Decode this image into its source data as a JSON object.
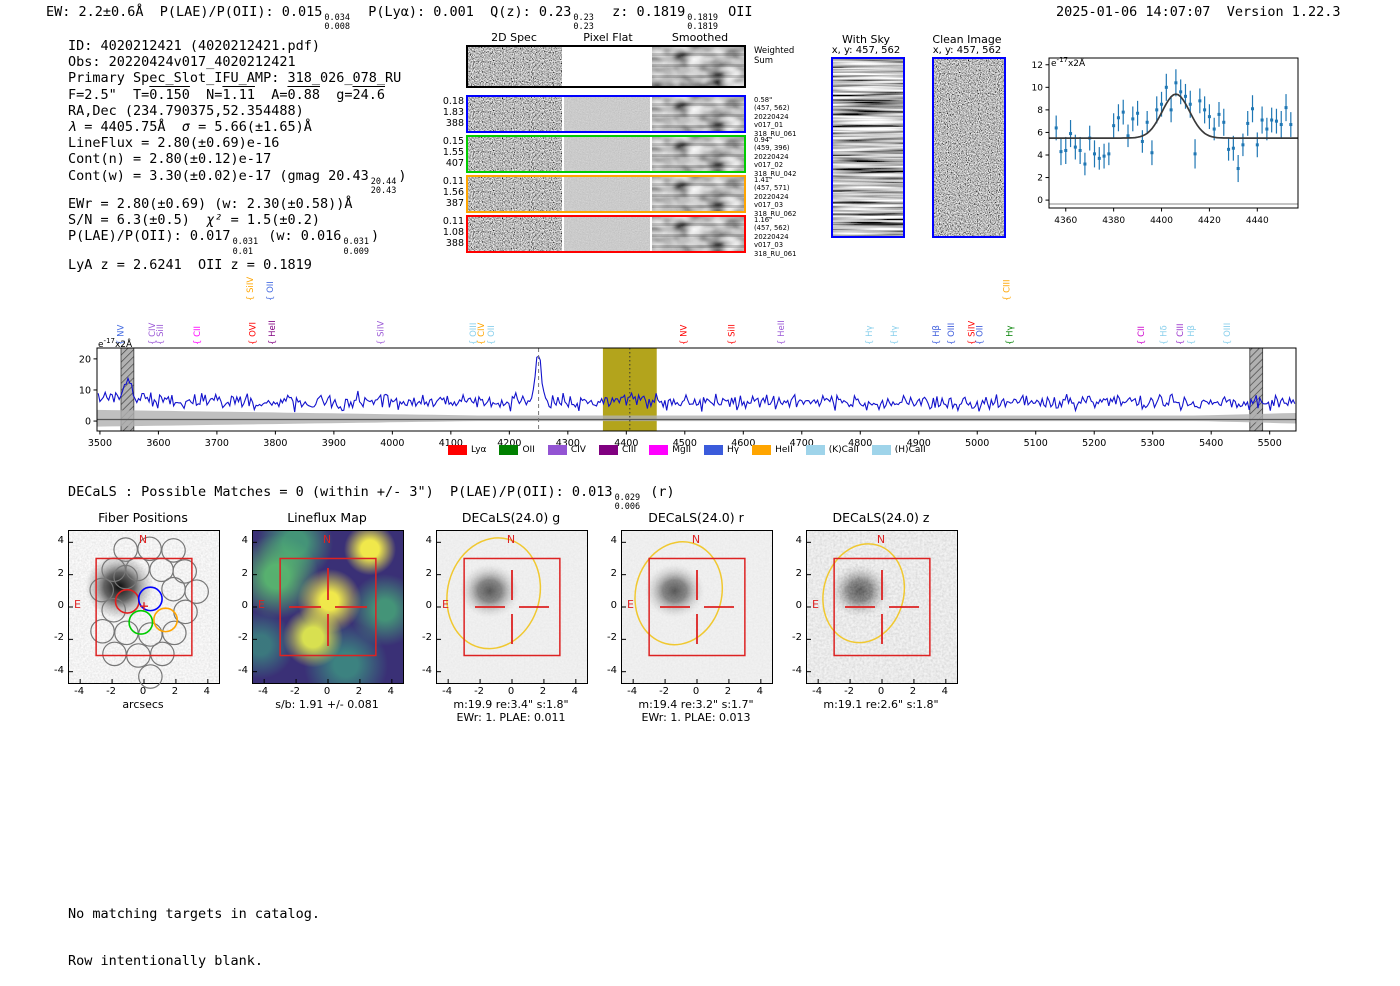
{
  "header": {
    "segs": [
      {
        "t": "EW: 2.2±0.6Å  P(LAE)/P(OII): 0.015"
      },
      {
        "f": [
          "0.034",
          "0.008"
        ]
      },
      {
        "t": "  P(Lyα): 0.001  Q(z): 0.23"
      },
      {
        "f": [
          "0.23",
          "0.23"
        ]
      },
      {
        "t": "  z: 0.1819"
      },
      {
        "f": [
          "0.1819",
          "0.1819"
        ]
      },
      {
        "t": " OII"
      }
    ],
    "timestamp": "2025-01-06 14:07:07",
    "version": "Version 1.22.3"
  },
  "info_lines": [
    [
      {
        "t": "ID: 4020212421 (4020212421.pdf)"
      }
    ],
    [
      {
        "t": "Obs: 20220424v017_4020212421"
      }
    ],
    [
      {
        "t": "Primary Spec_Slot_IFU_AMP: 318_026_078_RU"
      }
    ],
    [
      {
        "t": "F=2.5\"  T="
      },
      {
        "t": "0.150",
        "ol": true
      },
      {
        "t": "  N="
      },
      {
        "t": "1.11",
        "ol": true
      },
      {
        "t": "  A="
      },
      {
        "t": "0.88",
        "ol": true
      },
      {
        "t": "  g="
      },
      {
        "t": "24.6",
        "ol": true
      }
    ],
    [
      {
        "t": "RA,Dec (234.790375,52.354488)"
      }
    ],
    [
      {
        "t": "λ",
        "it": true
      },
      {
        "t": " = 4405.75Å  "
      },
      {
        "t": "σ",
        "it": true
      },
      {
        "t": " = 5.66(±1.65)Å"
      }
    ],
    [
      {
        "t": "LineFlux = 2.80(±0.69)e-16"
      }
    ],
    [
      {
        "t": "Cont(n) = 2.80(±0.12)e-17"
      }
    ],
    [
      {
        "t": "Cont(w) = 3.30(±0.02)e-17 (gmag 20.43"
      },
      {
        "f": [
          "20.44",
          "20.43"
        ]
      },
      {
        "t": ")"
      }
    ],
    [
      {
        "t": "EWr = 2.80(±0.69) (w: 2.30(±0.58))Å"
      }
    ],
    [
      {
        "t": "S/N = 6.3(±0.5)  "
      },
      {
        "t": "χ²",
        "it": true
      },
      {
        "t": " = 1.5(±0.2)"
      }
    ],
    [
      {
        "t": "P(LAE)/P(OII): 0.017"
      },
      {
        "f": [
          "0.031",
          "0.01"
        ]
      },
      {
        "t": " (w: 0.016"
      },
      {
        "f": [
          "0.031",
          "0.009"
        ]
      },
      {
        "t": ")"
      }
    ],
    [
      {
        "t": "LyA z = 2.6241  OII z = 0.1819"
      }
    ]
  ],
  "spec2d": {
    "col_titles": [
      "2D Spec",
      "Pixel Flat",
      "Smoothed"
    ],
    "rows": [
      {
        "border": "#000000",
        "left": [],
        "right": [
          "Weighted",
          "Sum"
        ],
        "big": true
      },
      {
        "border": "#0000ff",
        "left": [
          "0.18",
          "1.83",
          "388"
        ],
        "right": [
          "0.58\"",
          "(457, 562)",
          "20220424",
          "v017_01",
          "318_RU_061"
        ]
      },
      {
        "border": "#00cc00",
        "left": [
          "0.15",
          "1.55",
          "407"
        ],
        "right": [
          "0.94\"",
          "(459, 396)",
          "20220424",
          "v017_02",
          "318_RU_042"
        ]
      },
      {
        "border": "#ffa500",
        "left": [
          "0.11",
          "1.56",
          "387"
        ],
        "right": [
          "1.41\"",
          "(457, 571)",
          "20220424",
          "v017_03",
          "318_RU_062"
        ]
      },
      {
        "border": "#ff0000",
        "left": [
          "0.11",
          "1.08",
          "388"
        ],
        "right": [
          "1.16\"",
          "(457, 562)",
          "20220424",
          "v017_03",
          "318_RU_061"
        ]
      }
    ]
  },
  "sky": {
    "with_sky_title": "With Sky",
    "with_sky_sub": "x, y: 457, 562",
    "clean_title": "Clean Image",
    "clean_sub": "x, y: 457, 562"
  },
  "chart_data": [
    {
      "type": "scatter",
      "title": "Line fit zoom",
      "unit": {
        "base": "e",
        "exp": "-17",
        "suffix": "x2Å"
      },
      "xlim": [
        4353,
        4457
      ],
      "ylim": [
        -0.7,
        12.6
      ],
      "xticks": [
        4360,
        4380,
        4400,
        4420,
        4440
      ],
      "yticks": [
        0,
        2,
        4,
        6,
        8,
        10,
        12
      ],
      "point_color": "#1f77b4",
      "fit_color": "#3a3a3a",
      "fit": {
        "baseline": 5.5,
        "amplitude": 3.9,
        "center": 4406,
        "sigma": 5.7
      },
      "points": [
        [
          4356,
          6.4,
          1.1
        ],
        [
          4358,
          4.3,
          1.2
        ],
        [
          4360,
          4.4,
          1.2
        ],
        [
          4362,
          5.9,
          1.2
        ],
        [
          4364,
          4.7,
          1.1
        ],
        [
          4366,
          4.4,
          1.2
        ],
        [
          4368,
          3.2,
          1.0
        ],
        [
          4370,
          5.5,
          1.1
        ],
        [
          4372,
          4.1,
          1.2
        ],
        [
          4374,
          3.7,
          1.0
        ],
        [
          4376,
          3.9,
          1.1
        ],
        [
          4378,
          4.1,
          1.0
        ],
        [
          4380,
          6.6,
          1.1
        ],
        [
          4382,
          7.3,
          1.2
        ],
        [
          4384,
          7.8,
          1.1
        ],
        [
          4386,
          5.7,
          1.0
        ],
        [
          4388,
          7.2,
          1.1
        ],
        [
          4390,
          7.7,
          1.1
        ],
        [
          4392,
          5.2,
          1.0
        ],
        [
          4394,
          6.9,
          1.0
        ],
        [
          4396,
          4.2,
          1.1
        ],
        [
          4398,
          8.0,
          1.2
        ],
        [
          4400,
          8.5,
          1.1
        ],
        [
          4402,
          10.0,
          1.2
        ],
        [
          4404,
          8.0,
          1.1
        ],
        [
          4406,
          10.4,
          1.2
        ],
        [
          4408,
          9.6,
          1.1
        ],
        [
          4410,
          9.2,
          1.1
        ],
        [
          4412,
          8.5,
          1.2
        ],
        [
          4414,
          4.1,
          1.3
        ],
        [
          4416,
          8.8,
          1.1
        ],
        [
          4418,
          8.0,
          1.2
        ],
        [
          4420,
          7.4,
          1.1
        ],
        [
          4422,
          6.3,
          1.0
        ],
        [
          4424,
          7.6,
          1.1
        ],
        [
          4426,
          6.9,
          1.2
        ],
        [
          4428,
          4.5,
          1.0
        ],
        [
          4430,
          4.6,
          1.1
        ],
        [
          4432,
          2.8,
          1.2
        ],
        [
          4434,
          4.9,
          1.0
        ],
        [
          4436,
          6.8,
          1.1
        ],
        [
          4438,
          8.1,
          1.2
        ],
        [
          4440,
          4.9,
          1.1
        ],
        [
          4442,
          7.1,
          1.2
        ],
        [
          4444,
          6.3,
          1.0
        ],
        [
          4446,
          7.1,
          1.1
        ],
        [
          4448,
          7.0,
          1.1
        ],
        [
          4450,
          6.7,
          1.2
        ],
        [
          4452,
          8.2,
          1.2
        ],
        [
          4454,
          6.7,
          1.1
        ]
      ]
    },
    {
      "type": "line",
      "title": "Full spectrum",
      "unit": {
        "base": "e",
        "exp": "-17",
        "suffix": "x2Å"
      },
      "xlim": [
        3495,
        5545
      ],
      "ylim": [
        -3.2,
        23.5
      ],
      "xticks": [
        3500,
        3600,
        3700,
        3800,
        3900,
        4000,
        4100,
        4200,
        4300,
        4400,
        4500,
        4600,
        4700,
        4800,
        4900,
        5000,
        5100,
        5200,
        5300,
        5400,
        5500
      ],
      "yticks": [
        0,
        10,
        20
      ],
      "line_color": "#1212cc",
      "baseline": 6.2,
      "noise_sigma": 1.5,
      "spike": {
        "x": 4250,
        "peak": 22
      },
      "selected_line_x": 4406,
      "highlight_band": {
        "x0": 4360,
        "x1": 4452,
        "color": "#b3a41c"
      },
      "hatch_bands": [
        [
          3536,
          3558
        ],
        [
          5466,
          5488
        ]
      ],
      "dashed_line_x": 4250,
      "emission_labels": [
        {
          "name": "NV",
          "wave": 3540,
          "color": "#4169e1",
          "tier": 0
        },
        {
          "name": "CIV",
          "wave": 3594,
          "color": "#9b59d6",
          "tier": 0
        },
        {
          "name": "SiII",
          "wave": 3608,
          "color": "#9b59d6",
          "tier": 0
        },
        {
          "name": "CII",
          "wave": 3671,
          "color": "#ff00ff",
          "tier": 0
        },
        {
          "name": "SiIV",
          "wave": 3762,
          "color": "#ffa500",
          "tier": 1
        },
        {
          "name": "OII",
          "wave": 3796,
          "color": "#4169e1",
          "tier": 1
        },
        {
          "name": "OVI",
          "wave": 3766,
          "color": "#ff0000",
          "tier": 0
        },
        {
          "name": "HeII",
          "wave": 3799,
          "color": "#800080",
          "tier": 0
        },
        {
          "name": "SiIV",
          "wave": 3985,
          "color": "#9b59d6",
          "tier": 0
        },
        {
          "name": "OIII",
          "wave": 4143,
          "color": "#87ceeb",
          "tier": 0
        },
        {
          "name": "CIV",
          "wave": 4157,
          "color": "#ffa500",
          "tier": 0
        },
        {
          "name": "OII",
          "wave": 4174,
          "color": "#87ceeb",
          "tier": 0
        },
        {
          "name": "NV",
          "wave": 4503,
          "color": "#ff0000",
          "tier": 0
        },
        {
          "name": "SiII",
          "wave": 4585,
          "color": "#ff0000",
          "tier": 0
        },
        {
          "name": "HeII",
          "wave": 4670,
          "color": "#9b59d6",
          "tier": 0
        },
        {
          "name": "Hγ",
          "wave": 4820,
          "color": "#87ceeb",
          "tier": 0
        },
        {
          "name": "Hγ",
          "wave": 4863,
          "color": "#87ceeb",
          "tier": 0
        },
        {
          "name": "Hβ",
          "wave": 4935,
          "color": "#3b5bdb",
          "tier": 0
        },
        {
          "name": "OIII",
          "wave": 4960,
          "color": "#3b5bdb",
          "tier": 0
        },
        {
          "name": "SiIV",
          "wave": 4995,
          "color": "#ff0000",
          "tier": 0
        },
        {
          "name": "OII",
          "wave": 5009,
          "color": "#3b5bdb",
          "tier": 0
        },
        {
          "name": "CIII",
          "wave": 5055,
          "color": "#ffa500",
          "tier": 1
        },
        {
          "name": "Hγ",
          "wave": 5060,
          "color": "#008000",
          "tier": 0
        },
        {
          "name": "CII",
          "wave": 5285,
          "color": "#cc00cc",
          "tier": 0
        },
        {
          "name": "Hδ",
          "wave": 5324,
          "color": "#87ceeb",
          "tier": 0
        },
        {
          "name": "CIII",
          "wave": 5352,
          "color": "#9932cc",
          "tier": 0
        },
        {
          "name": "Hβ",
          "wave": 5371,
          "color": "#87ceeb",
          "tier": 0
        },
        {
          "name": "OIII",
          "wave": 5432,
          "color": "#87ceeb",
          "tier": 0
        }
      ],
      "legend": [
        {
          "label": "Lyα",
          "color": "#ff0000"
        },
        {
          "label": "OII",
          "color": "#008000"
        },
        {
          "label": "CIV",
          "color": "#9354d3"
        },
        {
          "label": "CIII",
          "color": "#800080"
        },
        {
          "label": "MgII",
          "color": "#ff00ff"
        },
        {
          "label": "Hγ",
          "color": "#3b5bdb"
        },
        {
          "label": "HeII",
          "color": "#ffa500"
        },
        {
          "label": "(K)CaII",
          "color": "#9fd4ea"
        },
        {
          "label": "(H)CaII",
          "color": "#9fd4ea"
        }
      ]
    }
  ],
  "decals_line": {
    "segs": [
      {
        "t": "DECaLS : Possible Matches = 0 (within +/- 3\")  P(LAE)/P(OII): 0.013"
      },
      {
        "f": [
          "0.029",
          "0.006"
        ]
      },
      {
        "t": " (r)"
      }
    ]
  },
  "cutouts": {
    "xticks": [
      -4,
      -2,
      0,
      2,
      4
    ],
    "yticks": [
      4,
      2,
      0,
      -2,
      -4
    ],
    "compass": {
      "n": "N",
      "e": "E"
    },
    "panels": [
      {
        "kind": "fiber",
        "title": "Fiber Positions",
        "xlabel": "arcsecs",
        "caption": ""
      },
      {
        "kind": "flux",
        "title": "Lineflux Map",
        "xlabel": "s/b: 1.91 +/- 0.081",
        "caption": ""
      },
      {
        "kind": "decals",
        "title": "DECaLS(24.0) g",
        "xlabel": "m:19.9  re:3.4\"  s:1.8\"",
        "caption": "EWr: 1. PLAE: 0.011"
      },
      {
        "kind": "decals",
        "title": "DECaLS(24.0) r",
        "xlabel": "m:19.4  re:3.2\"  s:1.7\"",
        "caption": "EWr: 1. PLAE: 0.013"
      },
      {
        "kind": "decals-z",
        "title": "DECaLS(24.0) z",
        "xlabel": "m:19.1  re:2.6\"  s:1.8\"",
        "caption": ""
      }
    ]
  },
  "footer": {
    "line1": "No matching targets in catalog.",
    "line2": "Row intentionally blank."
  },
  "colors": {
    "annotation_red": "#dd2222",
    "ellipse_yellow": "#f0c830",
    "fiber_red": "#e02020",
    "fiber_blue": "#0000ff",
    "fiber_green": "#00cc00",
    "fiber_orange": "#ffa500"
  }
}
